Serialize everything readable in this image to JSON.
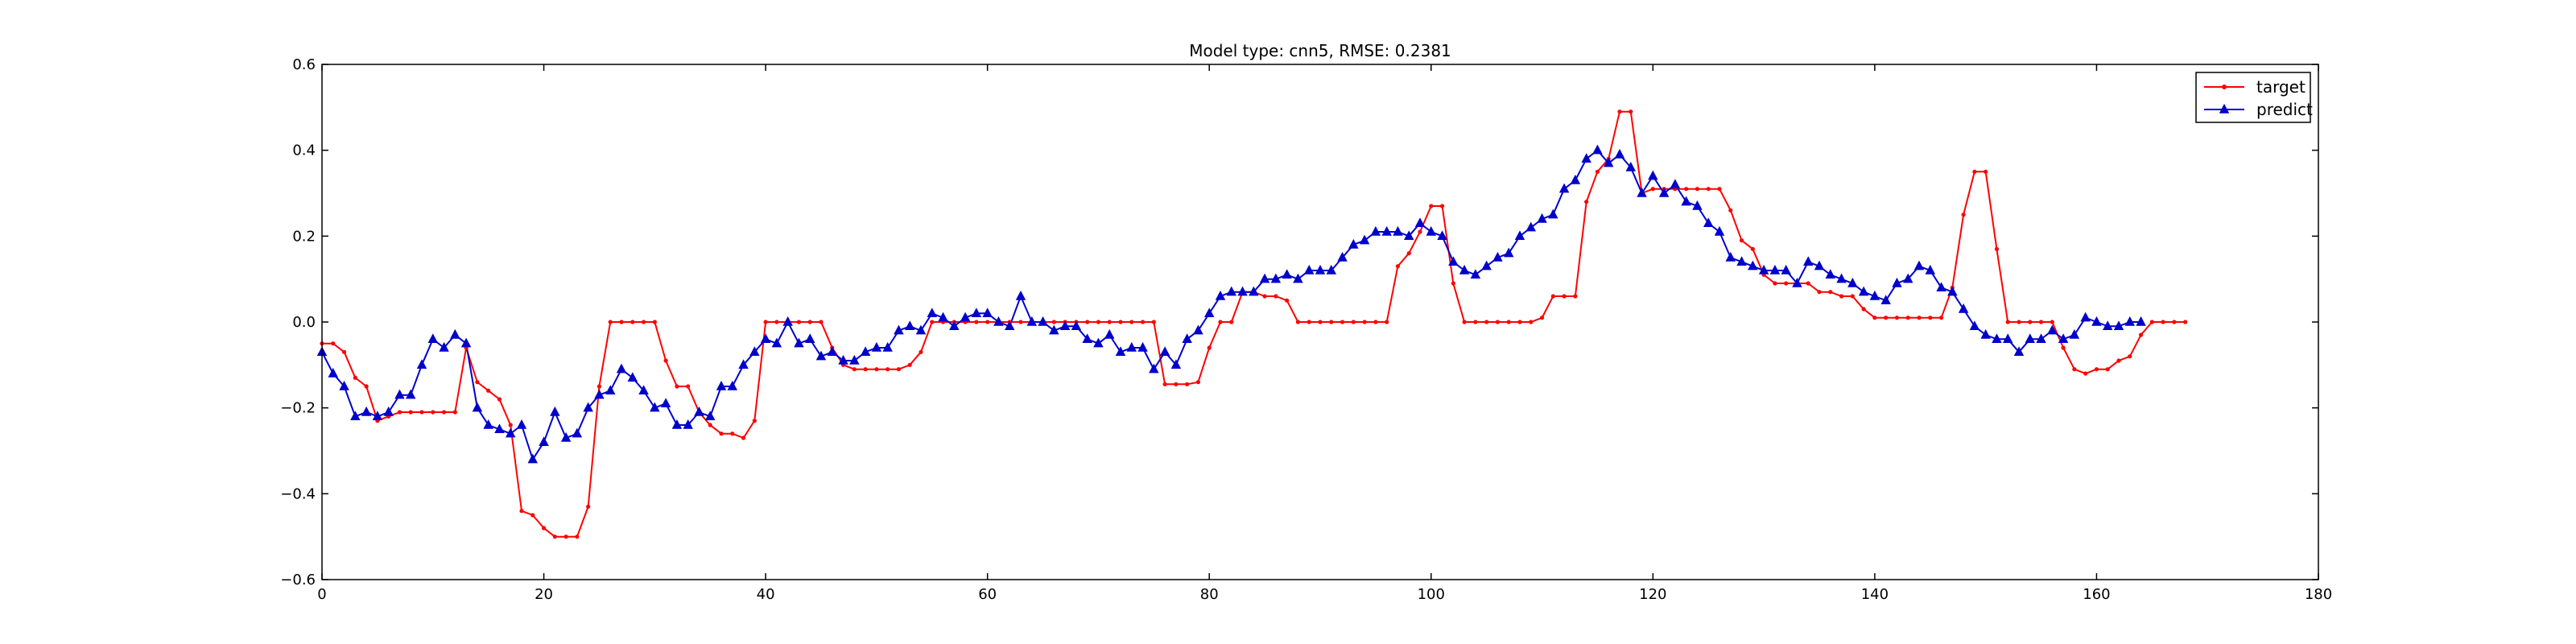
{
  "chart_data": {
    "type": "line",
    "title": "Model type: cnn5, RMSE: 0.2381",
    "xlabel": "",
    "ylabel": "",
    "xlim": [
      0,
      180
    ],
    "ylim": [
      -0.6,
      0.6
    ],
    "xticks": [
      0,
      20,
      40,
      60,
      80,
      100,
      120,
      140,
      160,
      180
    ],
    "yticks": [
      -0.6,
      -0.4,
      -0.2,
      0.0,
      0.2,
      0.4,
      0.6
    ],
    "xtick_labels": [
      "0",
      "20",
      "40",
      "60",
      "80",
      "100",
      "120",
      "140",
      "160",
      "180"
    ],
    "ytick_labels": [
      "−0.6",
      "−0.4",
      "−0.2",
      "0.0",
      "0.2",
      "0.4",
      "0.6"
    ],
    "grid": false,
    "legend": "top-right",
    "series": [
      {
        "name": "target",
        "color": "#ff0000",
        "marker": "dot",
        "values": [
          -0.05,
          -0.05,
          -0.07,
          -0.13,
          -0.15,
          -0.23,
          -0.22,
          -0.21,
          -0.21,
          -0.21,
          -0.21,
          -0.21,
          -0.21,
          -0.06,
          -0.14,
          -0.16,
          -0.18,
          -0.24,
          -0.44,
          -0.45,
          -0.48,
          -0.5,
          -0.5,
          -0.5,
          -0.43,
          -0.15,
          0.0,
          0.0,
          0.0,
          0.0,
          0.0,
          -0.09,
          -0.15,
          -0.15,
          -0.21,
          -0.24,
          -0.26,
          -0.26,
          -0.27,
          -0.23,
          0.0,
          0.0,
          0.0,
          0.0,
          0.0,
          0.0,
          -0.06,
          -0.1,
          -0.11,
          -0.11,
          -0.11,
          -0.11,
          -0.11,
          -0.1,
          -0.07,
          0.0,
          0.0,
          0.0,
          0.0,
          0.0,
          0.0,
          0.0,
          0.0,
          0.0,
          0.0,
          0.0,
          0.0,
          0.0,
          0.0,
          0.0,
          0.0,
          0.0,
          0.0,
          0.0,
          0.0,
          0.0,
          -0.145,
          -0.145,
          -0.145,
          -0.14,
          -0.06,
          0.0,
          0.0,
          0.07,
          0.07,
          0.06,
          0.06,
          0.05,
          0.0,
          0.0,
          0.0,
          0.0,
          0.0,
          0.0,
          0.0,
          0.0,
          0.0,
          0.13,
          0.16,
          0.21,
          0.27,
          0.27,
          0.09,
          0.0,
          0.0,
          0.0,
          0.0,
          0.0,
          0.0,
          0.0,
          0.01,
          0.06,
          0.06,
          0.06,
          0.28,
          0.35,
          0.38,
          0.49,
          0.49,
          0.3,
          0.31,
          0.31,
          0.31,
          0.31,
          0.31,
          0.31,
          0.31,
          0.26,
          0.19,
          0.17,
          0.11,
          0.09,
          0.09,
          0.09,
          0.09,
          0.07,
          0.07,
          0.06,
          0.06,
          0.03,
          0.01,
          0.01,
          0.01,
          0.01,
          0.01,
          0.01,
          0.01,
          0.08,
          0.25,
          0.35,
          0.35,
          0.17,
          0.0,
          0.0,
          0.0,
          0.0,
          0.0,
          -0.06,
          -0.11,
          -0.12,
          -0.11,
          -0.11,
          -0.09,
          -0.08,
          -0.03,
          0.0,
          0.0,
          0.0,
          0.0
        ]
      },
      {
        "name": "predict",
        "color": "#0000cc",
        "marker": "triangle",
        "values": [
          -0.07,
          -0.12,
          -0.15,
          -0.22,
          -0.21,
          -0.22,
          -0.21,
          -0.17,
          -0.17,
          -0.1,
          -0.04,
          -0.06,
          -0.03,
          -0.05,
          -0.2,
          -0.24,
          -0.25,
          -0.26,
          -0.24,
          -0.32,
          -0.28,
          -0.21,
          -0.27,
          -0.26,
          -0.2,
          -0.17,
          -0.16,
          -0.11,
          -0.13,
          -0.16,
          -0.2,
          -0.19,
          -0.24,
          -0.24,
          -0.21,
          -0.22,
          -0.15,
          -0.15,
          -0.1,
          -0.07,
          -0.04,
          -0.05,
          0.0,
          -0.05,
          -0.04,
          -0.08,
          -0.07,
          -0.09,
          -0.09,
          -0.07,
          -0.06,
          -0.06,
          -0.02,
          -0.01,
          -0.02,
          0.02,
          0.01,
          -0.01,
          0.01,
          0.02,
          0.02,
          0.0,
          -0.01,
          0.06,
          0.0,
          0.0,
          -0.02,
          -0.01,
          -0.01,
          -0.04,
          -0.05,
          -0.03,
          -0.07,
          -0.06,
          -0.06,
          -0.11,
          -0.07,
          -0.1,
          -0.04,
          -0.02,
          0.02,
          0.06,
          0.07,
          0.07,
          0.07,
          0.1,
          0.1,
          0.11,
          0.1,
          0.12,
          0.12,
          0.12,
          0.15,
          0.18,
          0.19,
          0.21,
          0.21,
          0.21,
          0.2,
          0.23,
          0.21,
          0.2,
          0.14,
          0.12,
          0.11,
          0.13,
          0.15,
          0.16,
          0.2,
          0.22,
          0.24,
          0.25,
          0.31,
          0.33,
          0.38,
          0.4,
          0.37,
          0.39,
          0.36,
          0.3,
          0.34,
          0.3,
          0.32,
          0.28,
          0.27,
          0.23,
          0.21,
          0.15,
          0.14,
          0.13,
          0.12,
          0.12,
          0.12,
          0.09,
          0.14,
          0.13,
          0.11,
          0.1,
          0.09,
          0.07,
          0.06,
          0.05,
          0.09,
          0.1,
          0.13,
          0.12,
          0.08,
          0.07,
          0.03,
          -0.01,
          -0.03,
          -0.04,
          -0.04,
          -0.07,
          -0.04,
          -0.04,
          -0.02,
          -0.04,
          -0.03,
          0.01,
          0.0,
          -0.01,
          -0.01,
          0.0,
          0.0
        ]
      }
    ]
  }
}
